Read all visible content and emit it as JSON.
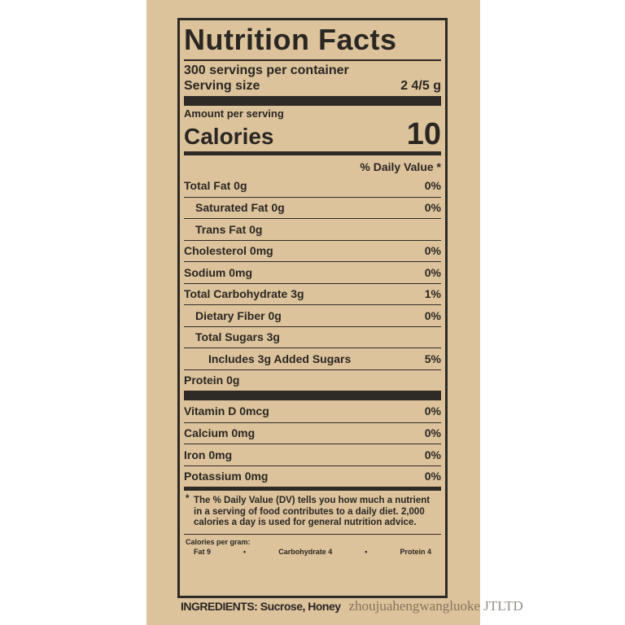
{
  "title": "Nutrition Facts",
  "servings": "300 servings per container",
  "serving_size_label": "Serving size",
  "serving_size_value": "2 4/5 g",
  "amount_per_serving": "Amount per serving",
  "calories_label": "Calories",
  "calories_value": "10",
  "daily_value_header": "% Daily Value *",
  "nutrients": [
    {
      "name": "Total Fat 0g",
      "dv": "0%"
    },
    {
      "name": "Saturated Fat 0g",
      "dv": "0%"
    },
    {
      "name": "Trans Fat 0g",
      "dv": ""
    },
    {
      "name": "Cholesterol 0mg",
      "dv": "0%"
    },
    {
      "name": "Sodium 0mg",
      "dv": "0%"
    },
    {
      "name": "Total Carbohydrate 3g",
      "dv": "1%"
    },
    {
      "name": "Dietary Fiber 0g",
      "dv": "0%"
    },
    {
      "name": "Total Sugars 3g",
      "dv": ""
    },
    {
      "name": "Includes 3g Added Sugars",
      "dv": "5%"
    },
    {
      "name": "Protein 0g",
      "dv": ""
    }
  ],
  "vitamins": [
    {
      "name": "Vitamin D 0mcg",
      "dv": "0%"
    },
    {
      "name": "Calcium 0mg",
      "dv": "0%"
    },
    {
      "name": "Iron 0mg",
      "dv": "0%"
    },
    {
      "name": "Potassium 0mg",
      "dv": "0%"
    }
  ],
  "footnote_star": "*",
  "footnote": "The % Daily Value (DV) tells you how much a nutrient in a serving of food contributes to a daily diet. 2,000 calories a day is used for general nutrition advice.",
  "calories_per_gram": {
    "label": "Calories per gram:",
    "fat": "Fat 9",
    "carb": "Carbohydrate 4",
    "protein": "Protein 4",
    "sep": "•"
  },
  "ingredients": "INGREDIENTS: Sucrose, Honey",
  "watermark": "zhoujuahengwangluoke JTLTD"
}
